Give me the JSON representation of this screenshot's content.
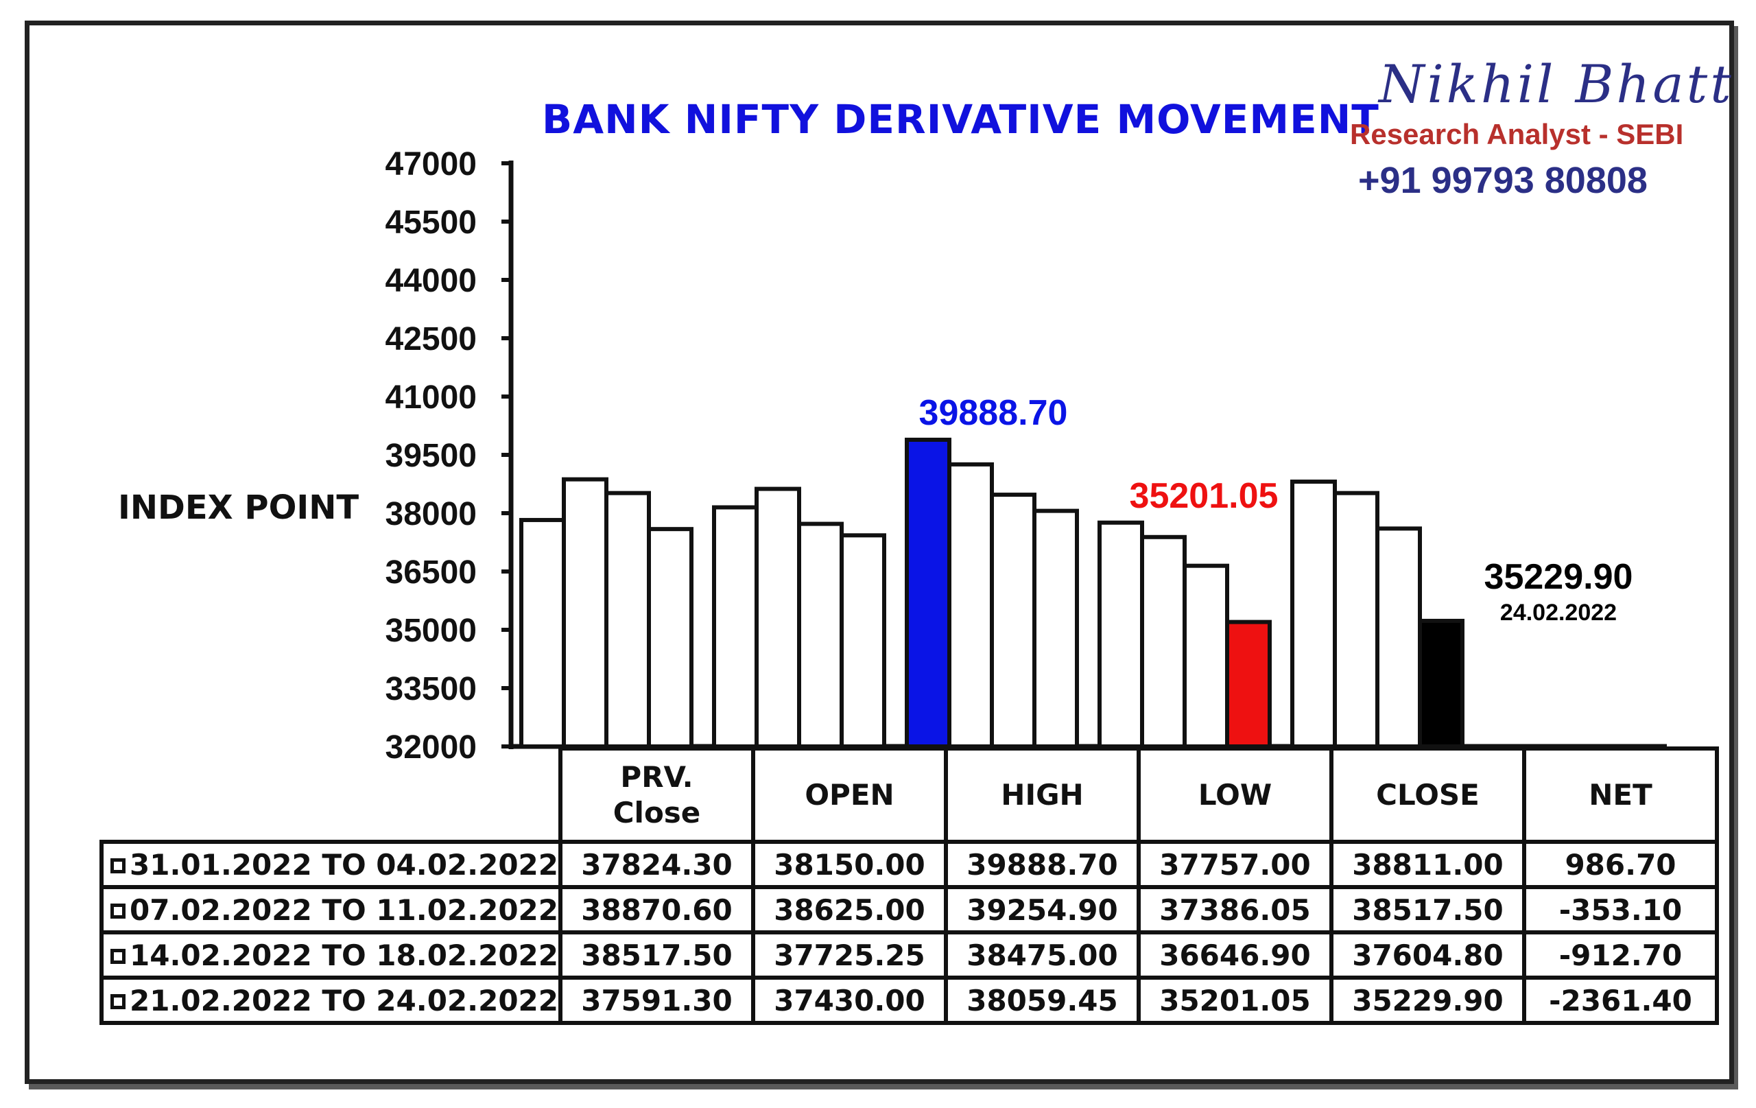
{
  "chart_data": {
    "type": "bar",
    "title": "BANK NIFTY DERIVATIVE MOVEMENT",
    "ylabel": "INDEX POINT",
    "ylim": [
      32000,
      47000
    ],
    "yticks": [
      "47000",
      "45500",
      "44000",
      "42500",
      "41000",
      "39500",
      "38000",
      "36500",
      "35000",
      "33500",
      "32000"
    ],
    "categories": [
      "PRV. Close",
      "OPEN",
      "HIGH",
      "LOW",
      "CLOSE"
    ],
    "series": [
      {
        "name": "31.01.2022 TO 04.02.2022",
        "values": [
          37824.3,
          38150.0,
          39888.7,
          37757.0,
          38811.0
        ]
      },
      {
        "name": "07.02.2022 TO 11.02.2022",
        "values": [
          38870.6,
          38625.0,
          39254.9,
          37386.05,
          38517.5
        ]
      },
      {
        "name": "14.02.2022 TO 18.02.2022",
        "values": [
          38517.5,
          37725.25,
          38475.0,
          36646.9,
          37604.8
        ]
      },
      {
        "name": "21.02.2022 TO 24.02.2022",
        "values": [
          37591.3,
          37430.0,
          38059.45,
          35201.05,
          35229.9
        ]
      }
    ],
    "highlights": {
      "high": {
        "label": "39888.70",
        "color": "#0a14e6"
      },
      "low": {
        "label": "35201.05",
        "color": "#ee1111"
      },
      "close": {
        "label": "35229.90",
        "sublabel": "24.02.2022",
        "color": "#000000"
      }
    },
    "grid": false
  },
  "brand": {
    "name": "Nikhil Bhatt",
    "role": "Research Analyst - SEBI",
    "phone": "+91 99793 80808"
  },
  "table": {
    "headers": [
      "PRV. Close",
      "OPEN",
      "HIGH",
      "LOW",
      "CLOSE",
      "NET"
    ],
    "rows": [
      {
        "label": "31.01.2022 TO 04.02.2022",
        "cells": [
          "37824.30",
          "38150.00",
          "39888.70",
          "37757.00",
          "38811.00",
          "986.70"
        ]
      },
      {
        "label": "07.02.2022 TO 11.02.2022",
        "cells": [
          "38870.60",
          "38625.00",
          "39254.90",
          "37386.05",
          "38517.50",
          "-353.10"
        ]
      },
      {
        "label": "14.02.2022 TO 18.02.2022",
        "cells": [
          "38517.50",
          "37725.25",
          "38475.00",
          "36646.90",
          "37604.80",
          "-912.70"
        ]
      },
      {
        "label": "21.02.2022 TO 24.02.2022",
        "cells": [
          "37591.30",
          "37430.00",
          "38059.45",
          "35201.05",
          "35229.90",
          "-2361.40"
        ]
      }
    ]
  }
}
